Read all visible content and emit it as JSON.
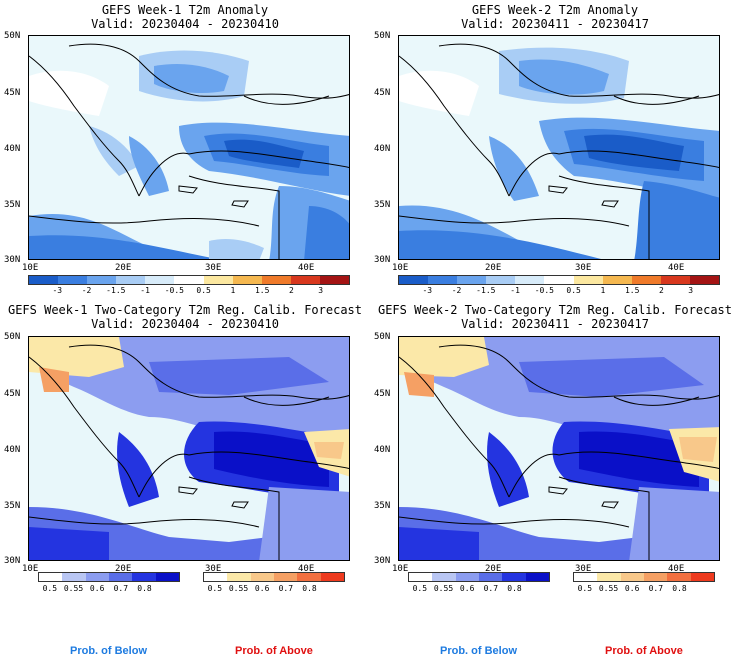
{
  "panels": [
    {
      "title_line1": "GEFS Week-1 T2m Anomaly",
      "title_line2": "Valid: 20230404 - 20230410"
    },
    {
      "title_line1": "GEFS Week-2 T2m Anomaly",
      "title_line2": "Valid: 20230411 - 20230417"
    },
    {
      "title_line1": "GEFS Week-1 Two-Category T2m Reg. Calib. Forecast",
      "title_line2": "Valid: 20230404 - 20230410"
    },
    {
      "title_line1": "GEFS Week-2 Two-Category T2m Reg. Calib. Forecast",
      "title_line2": "Valid: 20230411 - 20230417"
    }
  ],
  "lat_labels": [
    "50N",
    "45N",
    "40N",
    "35N",
    "30N"
  ],
  "lon_labels": [
    "10E",
    "20E",
    "30E",
    "40E"
  ],
  "anomaly_colorbar": {
    "ticks": [
      "-3",
      "-2",
      "-1.5",
      "-1",
      "-0.5",
      "0.5",
      "1",
      "1.5",
      "2",
      "3"
    ],
    "colors": [
      "#1a5cc8",
      "#3a7ee0",
      "#6aa4ee",
      "#a9cdf5",
      "#d8ecfa",
      "#ffffff",
      "#fce8a0",
      "#f5b850",
      "#ef7a2a",
      "#d8381e",
      "#a41414"
    ]
  },
  "below_colorbar": {
    "ticks": [
      "0.5",
      "0.55",
      "0.6",
      "0.7",
      "0.8"
    ],
    "colors": [
      "#ffffff",
      "#b9c6f3",
      "#8c9df0",
      "#5a6ee8",
      "#2434e0",
      "#0a10c8"
    ]
  },
  "above_colorbar": {
    "ticks": [
      "0.5",
      "0.55",
      "0.6",
      "0.7",
      "0.8"
    ],
    "colors": [
      "#ffffff",
      "#fbe8a8",
      "#f8c88a",
      "#f5a064",
      "#f27040",
      "#ee3a1e"
    ]
  },
  "footer": {
    "below_label": "Prob. of Below",
    "above_label": "Prob. of Above"
  },
  "colors": {
    "below_text": "#1e7be0",
    "above_text": "#e01010",
    "sea": "#e8f7fa",
    "land_light": "#cfe3f7"
  }
}
